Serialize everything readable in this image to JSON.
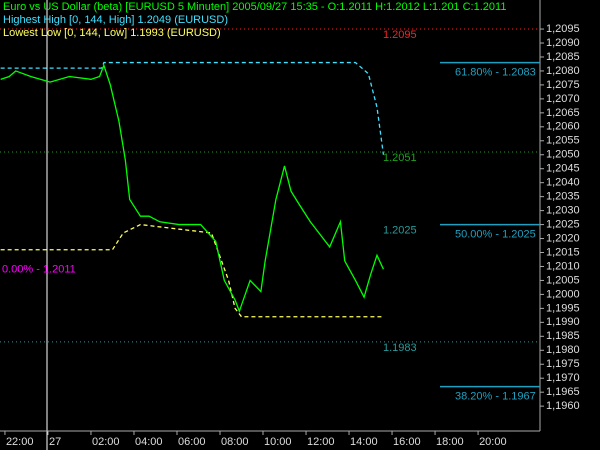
{
  "chart_data": {
    "type": "line",
    "title": "Euro vs US Dollar (beta) [EURUSD  5 Minuten] 2005/09/27 15:35 - O:1.2011 H:1.2012 L:1.201 C:1.2011",
    "x": [
      -2.2,
      -1.8,
      -1.5,
      -0.8,
      0.1,
      1.0,
      2.0,
      2.4,
      2.6,
      2.9,
      3.3,
      3.6,
      3.8,
      4.3,
      4.7,
      5.2,
      6.1,
      7.1,
      7.8,
      8.2,
      8.7,
      8.9,
      9.4,
      9.9,
      10.1,
      10.6,
      11.0,
      11.3,
      11.7,
      12.2,
      12.7,
      13.1,
      13.6,
      13.8,
      14.3,
      14.7,
      15.0,
      15.3,
      15.6
    ],
    "series": [
      {
        "name": "Euro vs US Dollar",
        "color": "#00ff00",
        "style": "solid",
        "values": [
          1.2077,
          1.2078,
          1.208,
          1.2078,
          1.2076,
          1.2078,
          1.2077,
          1.2078,
          1.2082,
          1.2075,
          1.2062,
          1.2048,
          1.2034,
          1.2028,
          1.2028,
          1.2026,
          1.2025,
          1.2025,
          1.2019,
          1.2005,
          1.1998,
          1.1994,
          1.2005,
          1.2001,
          1.2012,
          1.2034,
          1.2046,
          1.2037,
          1.2032,
          1.2026,
          1.2021,
          1.2017,
          1.2026,
          1.2012,
          1.2005,
          1.1999,
          1.2007,
          1.2014,
          1.2009
        ]
      }
    ],
    "indicators": [
      {
        "name": "Highest High [0, 144, High] 1.2049 (EURUSD)",
        "color": "#40e0ff",
        "x": [
          -2.2,
          2.5,
          2.6,
          14.3,
          14.9,
          15.3,
          15.6
        ],
        "values": [
          1.2081,
          1.2081,
          1.2083,
          1.2083,
          1.2079,
          1.2067,
          1.205
        ]
      },
      {
        "name": "Lowest Low [0, 144, Low] 1.1993 (EURUSD)",
        "color": "#ffff60",
        "x": [
          -2.2,
          3.0,
          3.5,
          4.3,
          7.6,
          8.4,
          8.7,
          9.0,
          15.6
        ],
        "values": [
          1.2016,
          1.2016,
          1.2022,
          1.2025,
          1.2022,
          1.2005,
          1.1995,
          1.1992,
          1.1992
        ]
      }
    ],
    "annotations": [
      {
        "text": "1.2095",
        "value": 1.2095,
        "color": "#ff2020",
        "dotted": true
      },
      {
        "text": "1.2051",
        "value": 1.2051,
        "color": "#20a020",
        "dotted": true
      },
      {
        "text": "1.2025",
        "value": 1.2025,
        "color": "#2a9a9a",
        "dotted": false
      },
      {
        "text": "1.1983",
        "value": 1.1983,
        "color": "#2a9a9a",
        "dotted": true
      },
      {
        "text": "0.00% - 1.2011",
        "value": 1.2011,
        "color": "#ff00ff",
        "dotted": false
      }
    ],
    "fib_levels": [
      {
        "text": "61.80% - 1.2083",
        "value": 1.2083
      },
      {
        "text": "50.00% - 1.2025",
        "value": 1.2025
      },
      {
        "text": "38.20% - 1.1967",
        "value": 1.1967
      }
    ],
    "fib_color": "#20a0c0",
    "xlim": [
      -2.23,
      22.88
    ],
    "ylim": [
      1.19511,
      1.21054
    ],
    "xticks": [
      {
        "value": -2,
        "label": "22:00"
      },
      {
        "value": 0,
        "label": "27"
      },
      {
        "value": 2,
        "label": "02:00"
      },
      {
        "value": 4,
        "label": "04:00"
      },
      {
        "value": 6,
        "label": "06:00"
      },
      {
        "value": 8,
        "label": "08:00"
      },
      {
        "value": 10,
        "label": "10:00"
      },
      {
        "value": 12,
        "label": "12:00"
      },
      {
        "value": 14,
        "label": "14:00"
      },
      {
        "value": 16,
        "label": "16:00"
      },
      {
        "value": 18,
        "label": "18:00"
      },
      {
        "value": 20,
        "label": "20:00"
      }
    ],
    "yticks": [
      {
        "value": 1.2095,
        "label": "1,2095"
      },
      {
        "value": 1.209,
        "label": "1,2090"
      },
      {
        "value": 1.2085,
        "label": "1,2085"
      },
      {
        "value": 1.208,
        "label": "1,2080"
      },
      {
        "value": 1.2075,
        "label": "1,2075"
      },
      {
        "value": 1.207,
        "label": "1,2070"
      },
      {
        "value": 1.2065,
        "label": "1,2065"
      },
      {
        "value": 1.206,
        "label": "1,2060"
      },
      {
        "value": 1.2055,
        "label": "1,2055"
      },
      {
        "value": 1.205,
        "label": "1,2050"
      },
      {
        "value": 1.2045,
        "label": "1,2045"
      },
      {
        "value": 1.204,
        "label": "1,2040"
      },
      {
        "value": 1.2035,
        "label": "1,2035"
      },
      {
        "value": 1.203,
        "label": "1,2030"
      },
      {
        "value": 1.2025,
        "label": "1,2025"
      },
      {
        "value": 1.202,
        "label": "1,2020"
      },
      {
        "value": 1.2015,
        "label": "1,2015"
      },
      {
        "value": 1.201,
        "label": "1,2010"
      },
      {
        "value": 1.2005,
        "label": "1,2005"
      },
      {
        "value": 1.2,
        "label": "1,2000"
      },
      {
        "value": 1.1995,
        "label": "1,1995"
      },
      {
        "value": 1.199,
        "label": "1,1990"
      },
      {
        "value": 1.1985,
        "label": "1,1985"
      },
      {
        "value": 1.198,
        "label": "1,1980"
      },
      {
        "value": 1.1975,
        "label": "1,1975"
      },
      {
        "value": 1.197,
        "label": "1,1970"
      },
      {
        "value": 1.1965,
        "label": "1,1965"
      },
      {
        "value": 1.196,
        "label": "1,1960"
      }
    ]
  }
}
